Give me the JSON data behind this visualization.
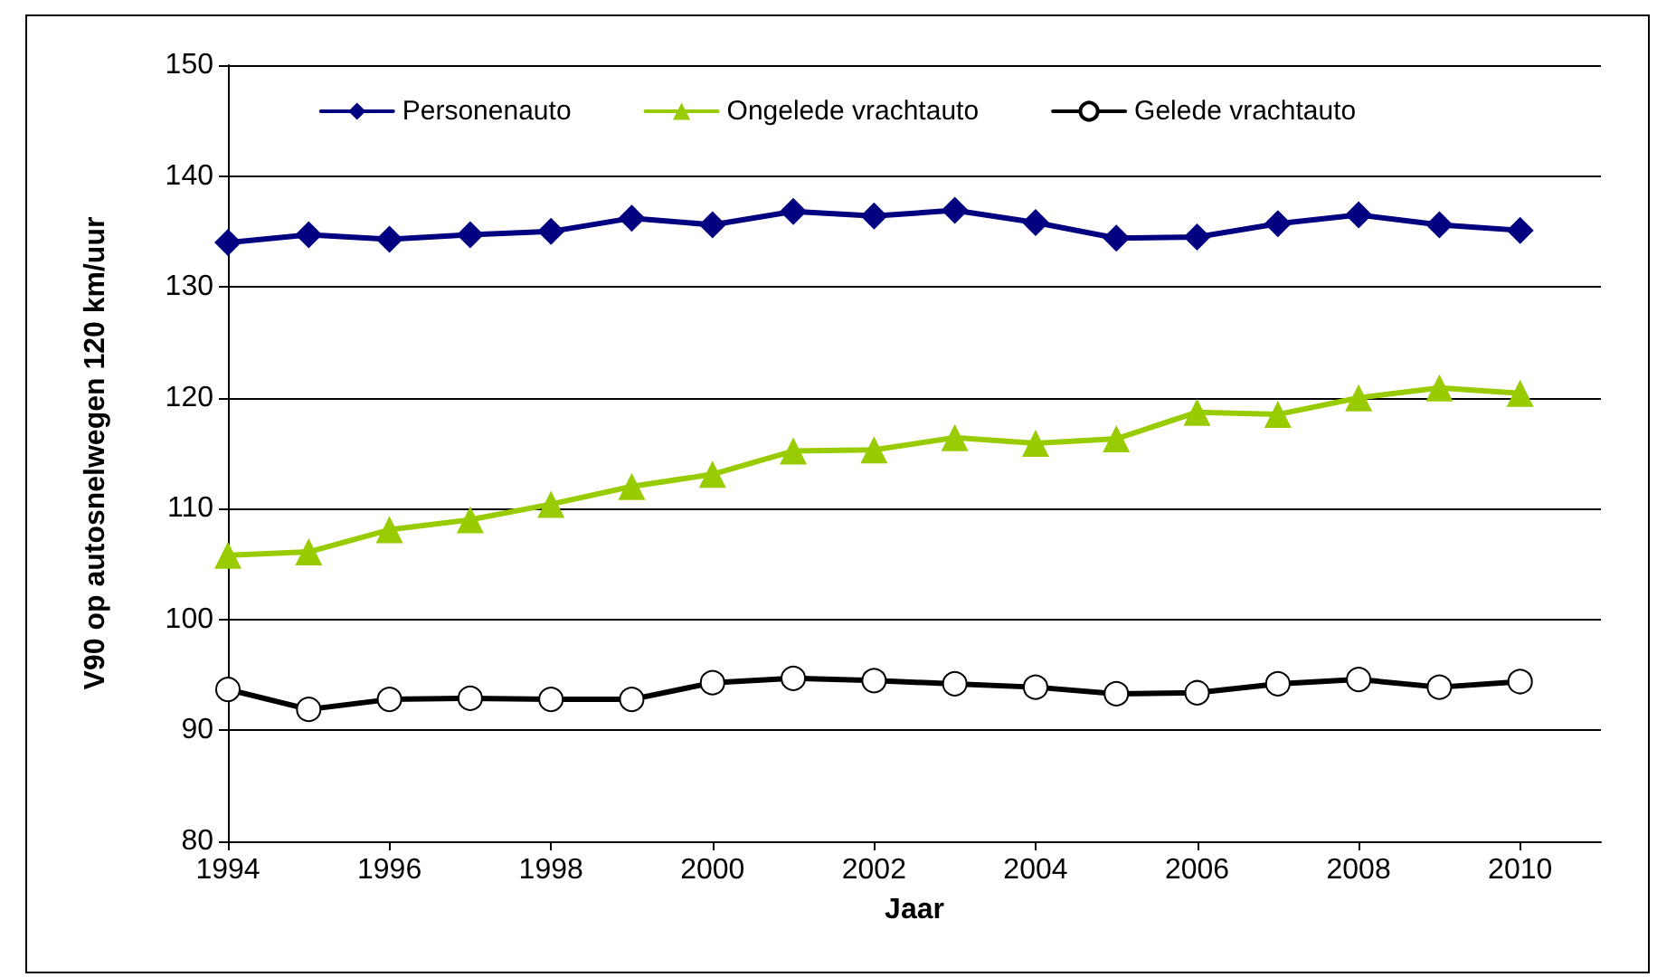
{
  "chart_data": {
    "type": "line",
    "xlabel": "Jaar",
    "ylabel": "V90 op autosnelwegen 120 km/uur",
    "x": [
      1994,
      1995,
      1996,
      1997,
      1998,
      1999,
      2000,
      2001,
      2002,
      2003,
      2004,
      2005,
      2006,
      2007,
      2008,
      2009,
      2010
    ],
    "series": [
      {
        "name": "Personenauto",
        "color": "#000080",
        "marker": "diamond",
        "values": [
          134.0,
          134.7,
          134.3,
          134.7,
          135.0,
          136.2,
          135.6,
          136.8,
          136.4,
          136.9,
          135.8,
          134.4,
          134.5,
          135.7,
          136.5,
          135.6,
          135.1
        ]
      },
      {
        "name": "Ongelede vrachtauto",
        "color": "#99cc00",
        "marker": "triangle",
        "values": [
          105.8,
          106.1,
          108.1,
          109.0,
          110.4,
          112.0,
          113.1,
          115.2,
          115.3,
          116.4,
          115.9,
          116.3,
          118.7,
          118.5,
          120.0,
          120.9,
          120.4
        ]
      },
      {
        "name": "Gelede vrachtauto",
        "color": "#000000",
        "marker": "circle",
        "values": [
          93.7,
          91.9,
          92.8,
          92.9,
          92.8,
          92.8,
          94.3,
          94.7,
          94.5,
          94.2,
          93.9,
          93.3,
          93.4,
          94.2,
          94.6,
          93.9,
          94.4
        ]
      }
    ],
    "xlim": [
      1994,
      2011
    ],
    "xticks": [
      1994,
      1996,
      1998,
      2000,
      2002,
      2004,
      2006,
      2008,
      2010
    ],
    "ylim": [
      80,
      150
    ],
    "yticks": [
      80,
      90,
      100,
      110,
      120,
      130,
      140,
      150
    ],
    "grid": "y",
    "legend": "top",
    "line_style": "solid"
  }
}
